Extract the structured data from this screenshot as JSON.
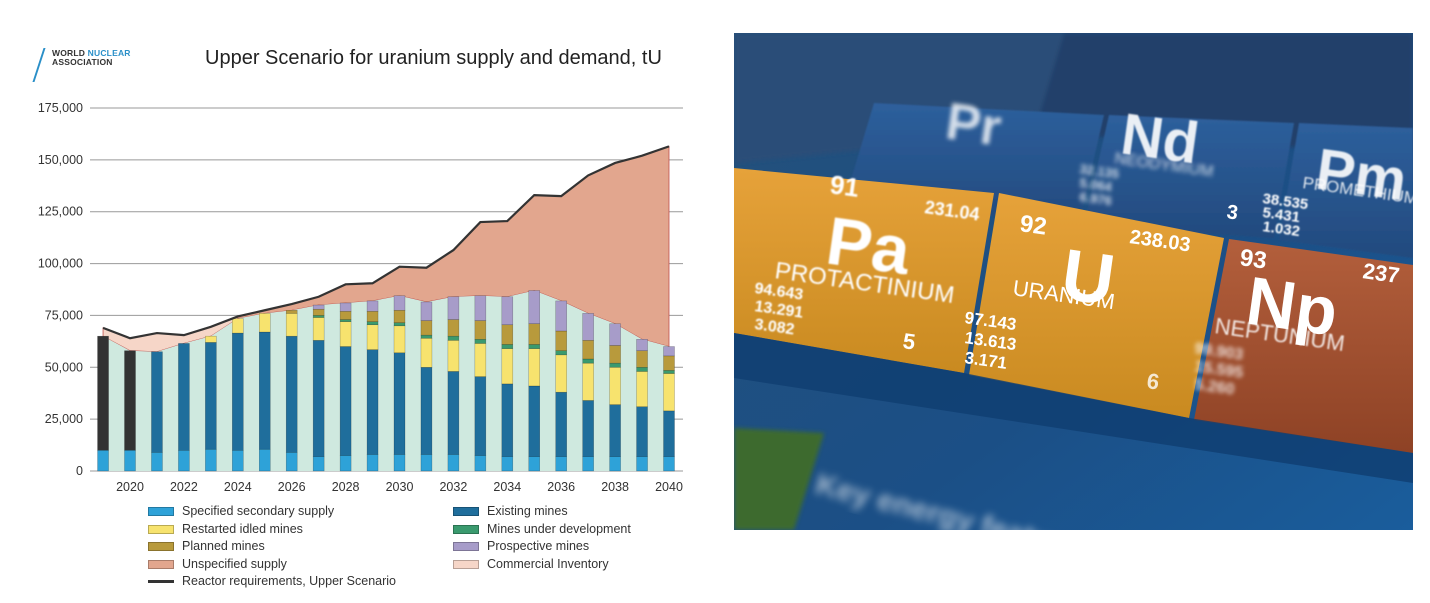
{
  "logo": {
    "line1_a": "WORLD ",
    "line1_b": "NUCLEAR",
    "line2": "ASSOCIATION"
  },
  "colors": {
    "specified_secondary": "#2ea2d8",
    "existing_mines": "#1f6e9c",
    "restarted_idled": "#f7e36e",
    "under_development": "#3a9a6e",
    "planned_mines": "#b89a3c",
    "prospective_mines": "#a79cc9",
    "unspecified_supply": "#e2a68e",
    "commercial_inventory": "#f6d6c8",
    "reactor_line": "#333333",
    "bar_background": "#cfe9df",
    "grid": "#999999"
  },
  "chart_data": {
    "type": "bar",
    "title": "Upper Scenario for uranium supply and demand, tU",
    "xlabel": "",
    "ylabel": "",
    "ylim": [
      0,
      175000
    ],
    "yticks": [
      "0",
      "25,000",
      "50,000",
      "75,000",
      "100,000",
      "125,000",
      "150,000",
      "175,000"
    ],
    "ytick_values": [
      0,
      25000,
      50000,
      75000,
      100000,
      125000,
      150000,
      175000
    ],
    "xticks": [
      "2020",
      "2022",
      "2024",
      "2026",
      "2028",
      "2030",
      "2032",
      "2034",
      "2036",
      "2038",
      "2040"
    ],
    "stacked": true,
    "categories": [
      2019,
      2020,
      2021,
      2022,
      2023,
      2024,
      2025,
      2026,
      2027,
      2028,
      2029,
      2030,
      2031,
      2032,
      2033,
      2034,
      2035,
      2036,
      2037,
      2038,
      2039,
      2040
    ],
    "series": [
      {
        "name": "Specified secondary supply",
        "key": "specified_secondary",
        "values": [
          10000,
          10000,
          9000,
          10000,
          10500,
          10000,
          10500,
          9000,
          7000,
          7500,
          8000,
          8000,
          8000,
          8000,
          7500,
          7000,
          7000,
          7000,
          7000,
          7000,
          7000,
          7000
        ]
      },
      {
        "name": "Existing mines",
        "key": "existing_mines",
        "values": [
          55000,
          48000,
          48500,
          51500,
          51500,
          56500,
          56500,
          56000,
          56000,
          52500,
          50500,
          49000,
          42000,
          40000,
          38000,
          35000,
          34000,
          31000,
          27000,
          25000,
          24000,
          22000
        ]
      },
      {
        "name": "Restarted idled mines",
        "key": "restarted_idled",
        "values": [
          0,
          0,
          0,
          0,
          3000,
          7000,
          9000,
          11000,
          11000,
          12000,
          12000,
          13000,
          14000,
          15000,
          16000,
          17000,
          18000,
          18000,
          18000,
          18000,
          17000,
          18000
        ]
      },
      {
        "name": "Mines under development",
        "key": "under_development",
        "values": [
          0,
          0,
          0,
          0,
          0,
          0,
          0,
          0,
          1000,
          1000,
          1500,
          1500,
          1500,
          2000,
          2000,
          2000,
          2000,
          2000,
          2000,
          2000,
          2000,
          1500
        ]
      },
      {
        "name": "Planned mines",
        "key": "planned_mines",
        "values": [
          0,
          0,
          0,
          0,
          0,
          0,
          0,
          1500,
          3000,
          4000,
          5000,
          6000,
          7000,
          8000,
          9000,
          9500,
          10000,
          9500,
          9000,
          8500,
          8000,
          7000
        ]
      },
      {
        "name": "Prospective mines",
        "key": "prospective_mines",
        "values": [
          0,
          0,
          0,
          0,
          0,
          0,
          0,
          0,
          2000,
          4000,
          5000,
          7000,
          9000,
          11000,
          12000,
          13500,
          16000,
          14500,
          13000,
          10500,
          5500,
          4500
        ]
      }
    ],
    "area_series": [
      {
        "name": "Unspecified supply",
        "key": "unspecified_supply",
        "note_base": "stacked total",
        "upper": [
          69000,
          64000,
          66500,
          65500,
          69500,
          74500,
          77500,
          80500,
          84000,
          90000,
          90500,
          98500,
          98000,
          106500,
          120000,
          120500,
          133000,
          132500,
          142500,
          148500,
          152000,
          156500
        ]
      },
      {
        "name": "Commercial Inventory",
        "key": "commercial_inventory"
      }
    ],
    "line_series": [
      {
        "name": "Reactor requirements, Upper Scenario",
        "key": "reactor_line",
        "values": [
          69000,
          64000,
          66500,
          65500,
          69500,
          74500,
          77500,
          80500,
          84000,
          90000,
          90500,
          98500,
          98000,
          106500,
          120000,
          120500,
          133000,
          132500,
          142500,
          148500,
          152000,
          156500
        ]
      }
    ],
    "early_years_existing_dark": [
      2019,
      2020
    ],
    "legend": {
      "placement": "bottom",
      "items": [
        {
          "label": "Specified secondary supply",
          "key": "specified_secondary",
          "kind": "box"
        },
        {
          "label": "Existing mines",
          "key": "existing_mines",
          "kind": "box"
        },
        {
          "label": "Restarted idled mines",
          "key": "restarted_idled",
          "kind": "box"
        },
        {
          "label": "Mines under development",
          "key": "under_development",
          "kind": "box"
        },
        {
          "label": "Planned mines",
          "key": "planned_mines",
          "kind": "box"
        },
        {
          "label": "Prospective mines",
          "key": "prospective_mines",
          "kind": "box"
        },
        {
          "label": "Unspecified supply",
          "key": "unspecified_supply",
          "kind": "box"
        },
        {
          "label": "Commercial Inventory",
          "key": "commercial_inventory",
          "kind": "box"
        },
        {
          "label": "Reactor requirements, Upper Scenario",
          "key": "reactor_line",
          "kind": "line"
        }
      ]
    },
    "grid": true
  },
  "photo": {
    "tiles": [
      {
        "symbol": "Pa",
        "number": "91",
        "mass": "231.04",
        "name": "PROTACTINIUM",
        "shells": [
          "94.643",
          "13.291",
          "3.082"
        ],
        "count": "5"
      },
      {
        "symbol": "U",
        "number": "92",
        "mass": "238.03",
        "name": "URANIUM",
        "shells": [
          "97.143",
          "13.613",
          "3.171"
        ],
        "count": "6"
      },
      {
        "symbol": "Np",
        "number": "93",
        "mass": "237",
        "name": "NEPTUNIUM",
        "shells": [
          "99.903",
          "15.595",
          "5.260"
        ],
        "count": ""
      },
      {
        "symbol": "Nd",
        "number": "",
        "mass": "",
        "name": "NEODYMIUM",
        "shells": [
          "32.135",
          "5.064",
          "6.976"
        ],
        "count": "3"
      },
      {
        "symbol": "Pm",
        "number": "",
        "mass": "",
        "name": "PROMETHIUM",
        "shells": [
          "38.535",
          "5.431",
          "1.032"
        ],
        "count": ""
      },
      {
        "symbol": "Pr",
        "number": "",
        "mass": "",
        "name": "",
        "shells": [],
        "count": ""
      }
    ],
    "footer_text": "Key energy features"
  }
}
